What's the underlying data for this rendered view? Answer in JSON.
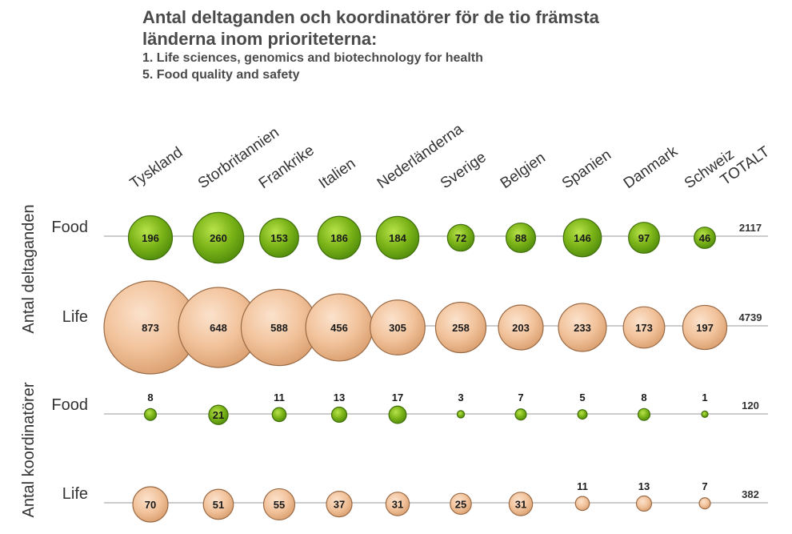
{
  "title": {
    "line1": "Antal deltaganden och koordinatörer för de tio främsta",
    "line2": "länderna inom prioriteterna:",
    "sub1": "1. Life sciences, genomics and biotechnology for health",
    "sub2": "5. Food quality and safety"
  },
  "colors": {
    "food": "#7ab317",
    "food_dark": "#3f6e0a",
    "life": "#f2c39c",
    "life_dark": "#9a6a45",
    "line": "#999999"
  },
  "chart_data": {
    "type": "bubble",
    "categories": [
      "Tyskland",
      "Storbritannien",
      "Frankrike",
      "Italien",
      "Nederländerna",
      "Sverige",
      "Belgien",
      "Spanien",
      "Danmark",
      "Schweiz"
    ],
    "total_header": "TOTALT",
    "groups": [
      {
        "label": "Antal deltaganden",
        "rows": [
          {
            "label": "Food",
            "series": "food",
            "values": [
              196,
              260,
              153,
              186,
              184,
              72,
              88,
              146,
              97,
              46
            ],
            "total": 2117
          },
          {
            "label": "Life",
            "series": "life",
            "values": [
              873,
              648,
              588,
              456,
              305,
              258,
              203,
              233,
              173,
              197
            ],
            "total": 4739
          }
        ]
      },
      {
        "label": "Antal koordinatörer",
        "rows": [
          {
            "label": "Food",
            "series": "food",
            "values": [
              8,
              21,
              11,
              13,
              17,
              3,
              7,
              5,
              8,
              1
            ],
            "total": 120
          },
          {
            "label": "Life",
            "series": "life",
            "values": [
              70,
              51,
              55,
              37,
              31,
              25,
              31,
              11,
              13,
              7
            ],
            "total": 382
          }
        ]
      }
    ]
  }
}
